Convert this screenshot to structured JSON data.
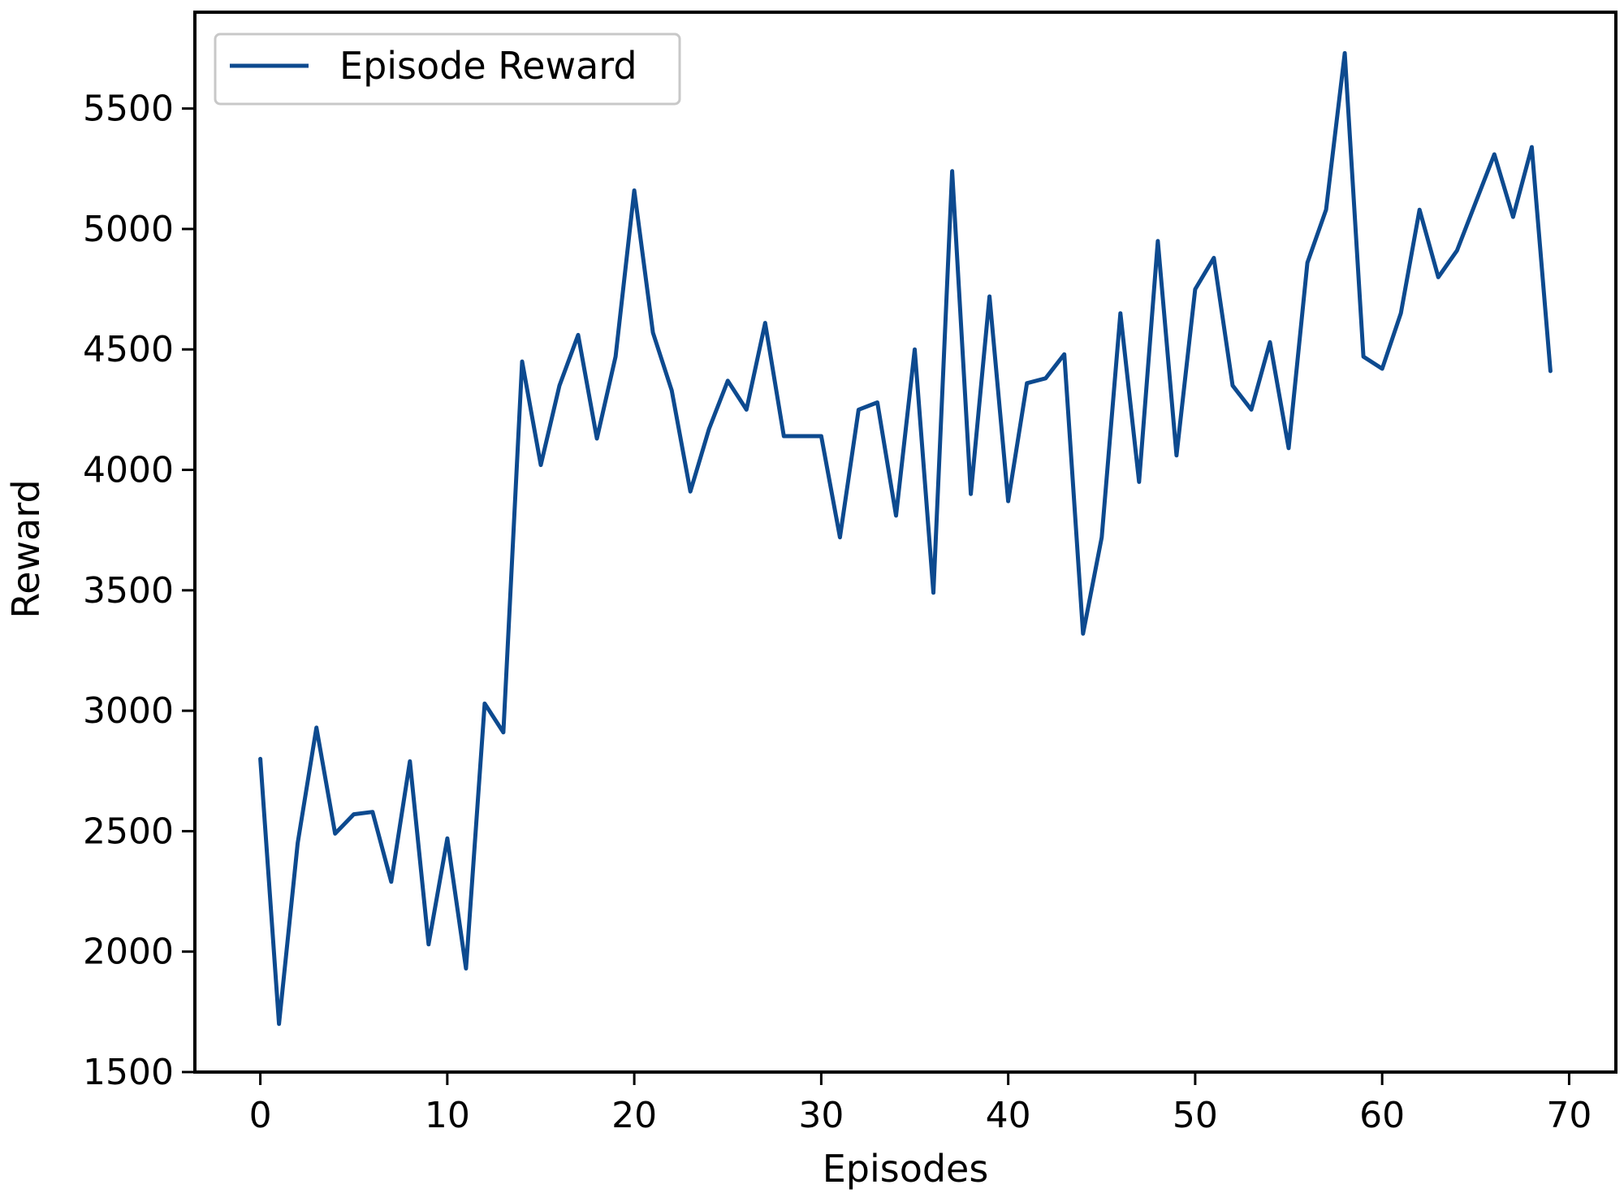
{
  "chart_data": {
    "type": "line",
    "title": "",
    "xlabel": "Episodes",
    "ylabel": "Reward",
    "xlim": [
      -3.5,
      72.5
    ],
    "ylim": [
      1500,
      5900
    ],
    "xticks": [
      0,
      10,
      20,
      30,
      40,
      50,
      60,
      70
    ],
    "yticks": [
      1500,
      2000,
      2500,
      3000,
      3500,
      4000,
      4500,
      5000,
      5500
    ],
    "grid": false,
    "legend_position": "top-left",
    "series": [
      {
        "name": "Episode Reward",
        "color": "#0d4a8f",
        "x": [
          0,
          1,
          2,
          3,
          4,
          5,
          6,
          7,
          8,
          9,
          10,
          11,
          12,
          13,
          14,
          15,
          16,
          17,
          18,
          19,
          20,
          21,
          22,
          23,
          24,
          25,
          26,
          27,
          28,
          29,
          30,
          31,
          32,
          33,
          34,
          35,
          36,
          37,
          38,
          39,
          40,
          41,
          42,
          43,
          44,
          45,
          46,
          47,
          48,
          49,
          50,
          51,
          52,
          53,
          54,
          55,
          56,
          57,
          58,
          59,
          60,
          61,
          62,
          63,
          64,
          65,
          66,
          67,
          68,
          69
        ],
        "values": [
          2800,
          1700,
          2450,
          2930,
          2490,
          2570,
          2580,
          2290,
          2790,
          2030,
          2470,
          1930,
          3030,
          2910,
          4450,
          4020,
          4350,
          4560,
          4130,
          4470,
          5160,
          4570,
          4330,
          3910,
          4170,
          4370,
          4250,
          4610,
          4140,
          4140,
          4140,
          3720,
          4250,
          4280,
          3810,
          4500,
          3490,
          5240,
          3900,
          4720,
          3870,
          4360,
          4380,
          4480,
          3320,
          3720,
          4650,
          3950,
          4950,
          4060,
          4750,
          4880,
          4350,
          4250,
          4530,
          4090,
          4860,
          5080,
          5730,
          4470,
          4420,
          4650,
          5080,
          4800,
          4910,
          5110,
          5310,
          5050,
          5340,
          4410
        ]
      }
    ]
  }
}
